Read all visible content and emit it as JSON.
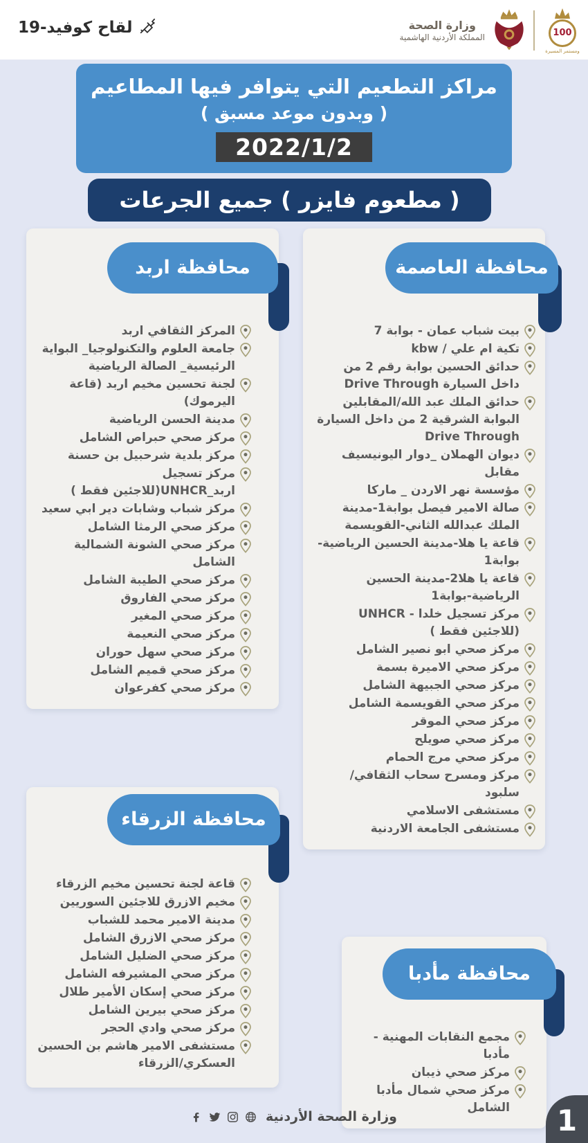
{
  "header": {
    "covid_label": "لقاح كوفيد-19",
    "ministry_name": "وزارة الصحة",
    "kingdom_name": "المملكة الأردنية الهاشمية",
    "centennial_number": "100",
    "centennial_caption": "ومستمر المسيرة"
  },
  "title_box": {
    "line1": "مراكز التطعيم التي يتوافر فيها المطاعيم",
    "line2": "( وبدون موعد مسبق )",
    "date": "2022/1/2"
  },
  "vaccine_banner": "( مطعوم فايزر )  جميع الجرعات",
  "governorates": {
    "capital": {
      "title": "محافظة العاصمة",
      "centers": [
        "بيت شباب عمان - بوابة 7",
        "تكية ام علي / kbw",
        "حدائق الحسين بوابة رقم 2 من داخل السيارة Drive Through",
        "حدائق الملك عبد الله/المقابلين البوابة الشرقية 2 من داخل السيارة Drive Through",
        "ديوان الهملان _دوار اليونيسيف مقابل",
        "مؤسسة نهر الاردن _ ماركا",
        "صالة الامير فيصل بوابة1-مدينة الملك عبدالله الثاني-القويسمة",
        "قاعة يا هلا-مدينة الحسين الرياضية-بوابة1",
        "قاعة يا هلا2-مدينة الحسين الرياضية-بوابة1",
        "مركز تسجيل خلدا - UNHCR (للاجئين فقط )",
        "مركز صحي ابو نصير الشامل",
        "مركز صحي الاميرة بسمة",
        "مركز صحي الجبيهة الشامل",
        "مركز صحي القويسمة الشامل",
        "مركز صحي الموقر",
        "مركز صحي صويلح",
        "مركز صحي مرج الحمام",
        "مركز ومسرح سحاب الثقافي/ سلبود",
        "مستشفى الاسلامي",
        "مستشفى الجامعة الاردنية"
      ]
    },
    "irbid": {
      "title": "محافظة اربد",
      "centers": [
        "المركز الثقافي اربد",
        "جامعة العلوم والتكنولوجيا_ البواية الرئيسية_ الصالة الرياضية",
        "لجنة تحسين مخيم اربد (قاعة اليرموك)",
        "مدينة الحسن الرياضية",
        "مركز صحي حبراص الشامل",
        "مركز بلدية شرحبيل بن حسنة",
        "مركز تسجيل اربد_UNHCR(للاجئين فقط )",
        "مركز شباب وشابات دير ابي سعيد",
        "مركز صحي الرمثا الشامل",
        "مركز صحي الشونة الشمالية الشامل",
        "مركز صحي الطيبة الشامل",
        "مركز صحي الفاروق",
        "مركز صحي المغير",
        "مركز صحي النعيمة",
        "مركز صحي سهل حوران",
        "مركز صحي قميم الشامل",
        "مركز صحي كفرعوان"
      ]
    },
    "zarqa": {
      "title": "محافظة الزرقاء",
      "centers": [
        "قاعة لجنة تحسين مخيم الزرقاء",
        "مخيم الازرق للاجئين السوريين",
        "مدينة الامير محمد للشباب",
        "مركز صحي الازرق الشامل",
        "مركز صحي الضليل الشامل",
        "مركز صحي المشيرفه الشامل",
        "مركز صحي إسكان الأمير طلال",
        "مركز صحي بيرين الشامل",
        "مركز صحي وادي الحجر",
        "مستشفى الامير هاشم بن الحسين العسكري/الزرقاء"
      ]
    },
    "madaba": {
      "title": "محافظة مأدبا",
      "centers": [
        "مجمع النقابات المهنية - مأدبا",
        "مركز صحي ذيبان",
        "مركز صحي شمال مأدبا الشامل"
      ]
    }
  },
  "footer": {
    "ministry": "وزارة الصحة الأردنية",
    "social_icons": [
      "facebook",
      "twitter",
      "instagram",
      "globe"
    ],
    "page_number": "1"
  },
  "colors": {
    "primary_blue": "#4a8fcb",
    "navy": "#1c3e6d",
    "page_bg": "#e2e6f3",
    "card_bg": "#f2f1ee",
    "date_bg": "#3d3d3d",
    "text_gray": "#5b5b5b",
    "pin_olive": "#a8a37c",
    "gold": "#b08c3e",
    "crest_red": "#8a1f2d"
  }
}
